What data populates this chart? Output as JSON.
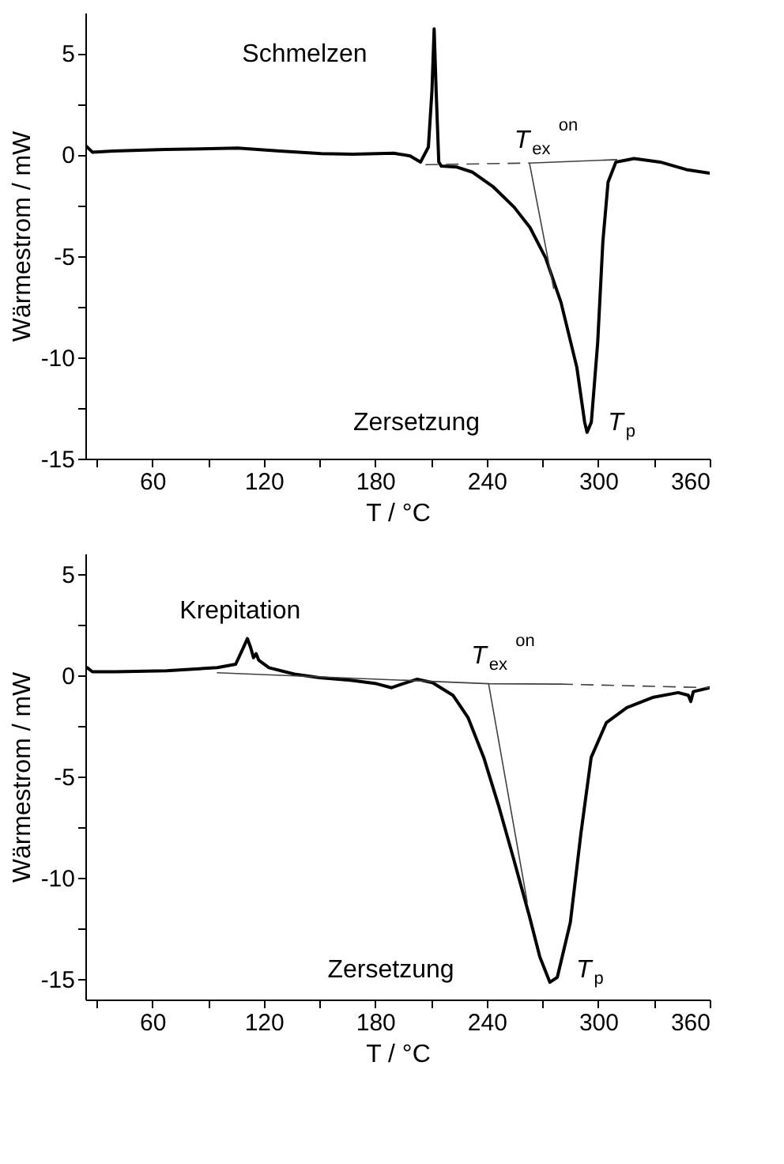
{
  "chart_data": [
    {
      "type": "line",
      "xlabel": "T / °C",
      "ylabel": "Wärmestrom / mW",
      "xlim": [
        24,
        360
      ],
      "ylim": [
        -15,
        7
      ],
      "xticks": [
        {
          "value": 30,
          "label": null
        },
        60,
        {
          "value": 90,
          "label": null
        },
        120,
        {
          "value": 150,
          "label": null
        },
        180,
        {
          "value": 210,
          "label": null
        },
        240,
        {
          "value": 270,
          "label": null
        },
        300,
        {
          "value": 330,
          "label": null
        },
        360
      ],
      "yticks": [
        -15,
        {
          "value": -12.5,
          "label": null
        },
        -10,
        {
          "value": -7.5,
          "label": null
        },
        -5,
        {
          "value": -2.5,
          "label": null
        },
        0,
        {
          "value": 2.5,
          "label": null
        },
        5
      ],
      "grid": false,
      "series": [
        {
          "color": "#000000",
          "line_style": "solid",
          "x": [
            24.4,
            27.8,
            39,
            67,
            106,
            128.7,
            151,
            168,
            190,
            198.8,
            204.4,
            208.6,
            210.5,
            211.7,
            212.8,
            214.2,
            215.6,
            224,
            232.4,
            243.6,
            254.8,
            263.3,
            271.7,
            280,
            288.5,
            292.7,
            294,
            296.3,
            299.7,
            302.5,
            305.3,
            309.5,
            319.3,
            333.3,
            347.4,
            360
          ],
          "values": [
            0.42,
            0.12,
            0.17,
            0.25,
            0.32,
            0.17,
            0.05,
            0.02,
            0.07,
            -0.07,
            -0.37,
            0.37,
            3.1,
            6.2,
            3.1,
            -0.37,
            -0.57,
            -0.62,
            -0.87,
            -1.6,
            -2.6,
            -3.6,
            -5.1,
            -7.3,
            -10.5,
            -13.2,
            -13.7,
            -13.2,
            -9.3,
            -4.3,
            -1.36,
            -0.37,
            -0.2,
            -0.37,
            -0.74,
            -0.92
          ]
        },
        {
          "color": "#404040",
          "line_style": "dashed",
          "x": [
            207,
            263
          ],
          "values": [
            -0.5,
            -0.42
          ]
        },
        {
          "color": "#404040",
          "line_style": "solid",
          "x": [
            263,
            310
          ],
          "values": [
            -0.42,
            -0.25
          ]
        },
        {
          "color": "#404040",
          "line_style": "solid",
          "x": [
            263,
            276
          ],
          "values": [
            -0.42,
            -6.6
          ]
        }
      ],
      "annotations": [
        "Schmelzen",
        "T$_{ex}$$^{on}$",
        "Zersetzung",
        "T$_{p}$"
      ]
    },
    {
      "type": "line",
      "xlabel": "T / °C",
      "ylabel": "Wärmestrom / mW",
      "xlim": [
        24,
        360
      ],
      "ylim": [
        -16,
        6
      ],
      "xticks": [
        {
          "value": 30,
          "label": null
        },
        60,
        {
          "value": 90,
          "label": null
        },
        120,
        {
          "value": 150,
          "label": null
        },
        180,
        {
          "value": 210,
          "label": null
        },
        240,
        {
          "value": 270,
          "label": null
        },
        300,
        {
          "value": 330,
          "label": null
        },
        360
      ],
      "yticks": [
        -15,
        {
          "value": -12.5,
          "label": null
        },
        -10,
        {
          "value": -7.5,
          "label": null
        },
        -5,
        {
          "value": -2.5,
          "label": null
        },
        0,
        {
          "value": 2.5,
          "label": null
        },
        5
      ],
      "grid": false,
      "series": [
        {
          "color": "#000000",
          "line_style": "solid",
          "x": [
            25,
            27.8,
            40,
            67.7,
            95,
            104.9,
            109,
            111.2,
            113,
            114.5,
            115.9,
            117.3,
            122.8,
            136.5,
            150,
            166.8,
            180.6,
            188.8,
            194.3,
            202.6,
            210.8,
            221.8,
            230,
            238.4,
            246.6,
            254.9,
            263,
            268.6,
            274,
            278,
            285,
            290.7,
            296.2,
            304.4,
            315.4,
            329.2,
            343,
            348.5,
            349.8,
            351.2,
            360
          ],
          "values": [
            0.37,
            0.17,
            0.17,
            0.22,
            0.37,
            0.54,
            1.35,
            1.8,
            1.35,
            0.86,
            1.06,
            0.74,
            0.37,
            0.05,
            -0.12,
            -0.25,
            -0.42,
            -0.62,
            -0.44,
            -0.2,
            -0.37,
            -0.99,
            -2.1,
            -4.06,
            -6.5,
            -9.2,
            -11.9,
            -13.9,
            -15.15,
            -14.9,
            -12.2,
            -7.8,
            -4.06,
            -2.34,
            -1.6,
            -1.1,
            -0.86,
            -0.99,
            -1.3,
            -0.81,
            -0.62
          ]
        },
        {
          "color": "#404040",
          "line_style": "solid",
          "x": [
            95,
            241,
            279.6
          ],
          "values": [
            0.12,
            -0.42,
            -0.44
          ]
        },
        {
          "color": "#404040",
          "line_style": "dashed",
          "x": [
            279.6,
            360
          ],
          "values": [
            -0.44,
            -0.62
          ]
        },
        {
          "color": "#404040",
          "line_style": "solid",
          "x": [
            241,
            261.8
          ],
          "values": [
            -0.42,
            -11.2
          ]
        }
      ],
      "annotations": [
        "Krepitation",
        "T$_{ex}$$^{on}$",
        "Zersetzung",
        "T$_{p}$"
      ]
    }
  ]
}
